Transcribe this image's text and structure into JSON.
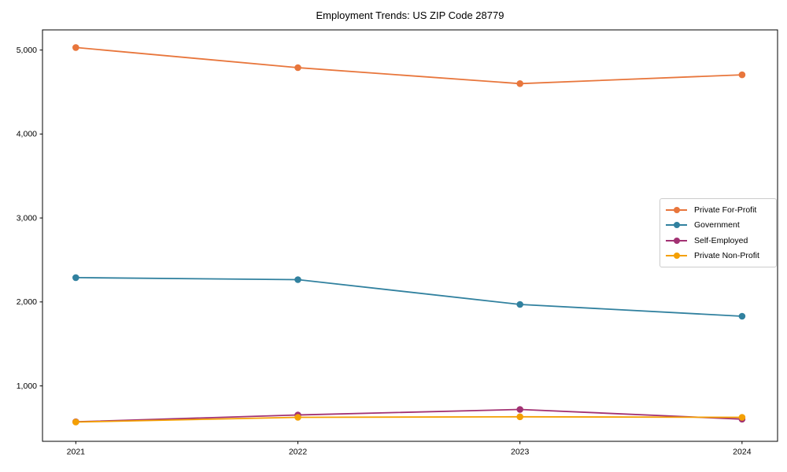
{
  "chart_data": {
    "type": "line",
    "title": "Employment Trends: US ZIP Code 28779",
    "xlabel": "",
    "ylabel": "",
    "x": [
      2021,
      2022,
      2023,
      2024
    ],
    "x_tick_labels": [
      "2021",
      "2022",
      "2023",
      "2024"
    ],
    "y_ticks": [
      1000,
      2000,
      3000,
      4000,
      5000
    ],
    "y_tick_labels": [
      "1,000",
      "2,000",
      "3,000",
      "4,000",
      "5,000"
    ],
    "ylim": [
      340,
      5240
    ],
    "xlim": [
      2020.85,
      2024.16
    ],
    "grid": false,
    "marker": "o",
    "legend_position": "center right",
    "series": [
      {
        "name": "Private For-Profit",
        "color": "#e8763c",
        "values": [
          5030,
          4790,
          4600,
          4705
        ]
      },
      {
        "name": "Government",
        "color": "#31819f",
        "values": [
          2290,
          2265,
          1970,
          1830
        ]
      },
      {
        "name": "Self-Employed",
        "color": "#a23273",
        "values": [
          572,
          654,
          719,
          604
        ]
      },
      {
        "name": "Private Non-Profit",
        "color": "#f4a004",
        "values": [
          570,
          626,
          632,
          626
        ]
      }
    ]
  }
}
